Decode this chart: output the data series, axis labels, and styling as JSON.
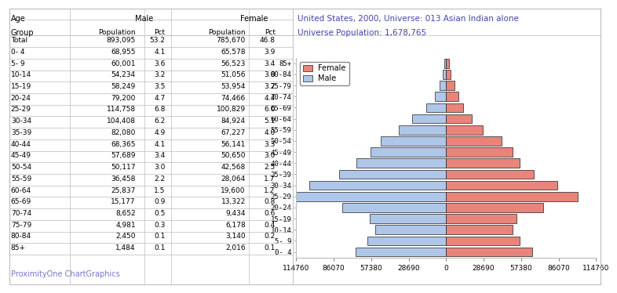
{
  "title_line1": "United States, 2000, Universe: 013 Asian Indian alone",
  "title_line2": "Universe Population: 1,678,765",
  "age_groups": [
    "0- 4",
    "5- 9",
    "10-14",
    "15-19",
    "20-24",
    "25-29",
    "30-34",
    "35-39",
    "40-44",
    "45-49",
    "50-54",
    "55-59",
    "60-64",
    "65-69",
    "70-74",
    "75-79",
    "80-84",
    "85+"
  ],
  "male_pop": [
    68955,
    60001,
    54234,
    58249,
    79200,
    114758,
    104408,
    82080,
    68365,
    57689,
    50117,
    36458,
    25837,
    15177,
    8652,
    4981,
    2450,
    1484
  ],
  "female_pop": [
    65578,
    56523,
    51056,
    53954,
    74466,
    100829,
    84924,
    67227,
    56141,
    50650,
    42568,
    28064,
    19600,
    13322,
    9434,
    6178,
    3140,
    2016
  ],
  "male_pcts": [
    4.1,
    3.6,
    3.2,
    3.5,
    4.7,
    6.8,
    6.2,
    4.9,
    4.1,
    3.4,
    3.0,
    2.2,
    1.5,
    0.9,
    0.5,
    0.3,
    0.1,
    0.1
  ],
  "female_pcts": [
    3.9,
    3.4,
    3.0,
    3.2,
    4.4,
    6.0,
    5.1,
    4.0,
    3.3,
    3.0,
    2.5,
    1.7,
    1.2,
    0.8,
    0.6,
    0.4,
    0.2,
    0.1
  ],
  "male_total": 893095,
  "female_total": 785670,
  "male_total_pct": 53.2,
  "female_total_pct": 46.8,
  "male_color": "#aec6e8",
  "female_color": "#e8847a",
  "bar_edge_color": "#222222",
  "bar_edge_width": 0.5,
  "xlim": 114760,
  "xticks": [
    -114760,
    -86070,
    -57380,
    -28690,
    0,
    28690,
    57380,
    86070,
    114760
  ],
  "xticklabels": [
    "114760",
    "86070",
    "57380",
    "28690",
    "0",
    "28690",
    "57380",
    "86070",
    "114760"
  ],
  "background_color": "#ffffff",
  "grid_color": "#bbbbbb",
  "title_color": "#4444aa",
  "footer_text": "ProximityOne ChartGraphics",
  "footer_color": "#7777cc",
  "border_color": "#aaaaaa"
}
